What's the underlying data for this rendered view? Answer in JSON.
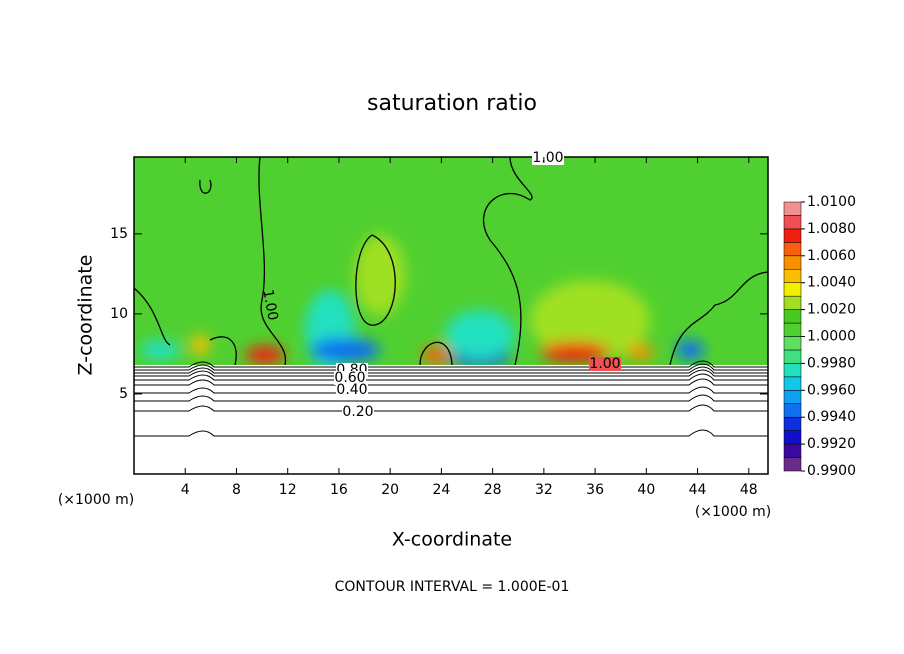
{
  "chart_data": {
    "type": "contour",
    "title": "saturation ratio",
    "x_label": "X-coordinate",
    "y_label": "Z-coordinate",
    "x_unit": "(×1000 m)",
    "x_unit_right": "(×1000 m)",
    "footer": "CONTOUR INTERVAL = 1.000E-01",
    "xlim": [
      0,
      49.5
    ],
    "ylim": [
      0,
      19.8
    ],
    "xticks": [
      4,
      8,
      12,
      16,
      20,
      24,
      28,
      32,
      36,
      40,
      44,
      48
    ],
    "yticks": [
      5,
      10,
      15
    ],
    "contour_labels": [
      "1.00",
      "1.00",
      "1.00",
      "0.80",
      "0.60",
      "0.40",
      "0.20"
    ],
    "colorbar": {
      "lim": [
        0.99,
        1.01
      ],
      "ticks": [
        {
          "value": 0.99,
          "label": "0.9900"
        },
        {
          "value": 0.992,
          "label": "0.9920"
        },
        {
          "value": 0.994,
          "label": "0.9940"
        },
        {
          "value": 0.996,
          "label": "0.9960"
        },
        {
          "value": 0.998,
          "label": "0.9980"
        },
        {
          "value": 1.0,
          "label": "1.0000"
        },
        {
          "value": 1.002,
          "label": "1.0020"
        },
        {
          "value": 1.004,
          "label": "1.0040"
        },
        {
          "value": 1.006,
          "label": "1.0060"
        },
        {
          "value": 1.008,
          "label": "1.0080"
        },
        {
          "value": 1.01,
          "label": "1.0100"
        }
      ],
      "colors": [
        "#6a2a8a",
        "#3a0aa0",
        "#1010c8",
        "#1030e0",
        "#1070f0",
        "#10a0f0",
        "#10c8e8",
        "#20e0c0",
        "#40e080",
        "#60e060",
        "#50d030",
        "#48c820",
        "#a0e020",
        "#f0f000",
        "#f8c000",
        "#f89000",
        "#f86010",
        "#f02010",
        "#f05050",
        "#f09090"
      ]
    }
  }
}
